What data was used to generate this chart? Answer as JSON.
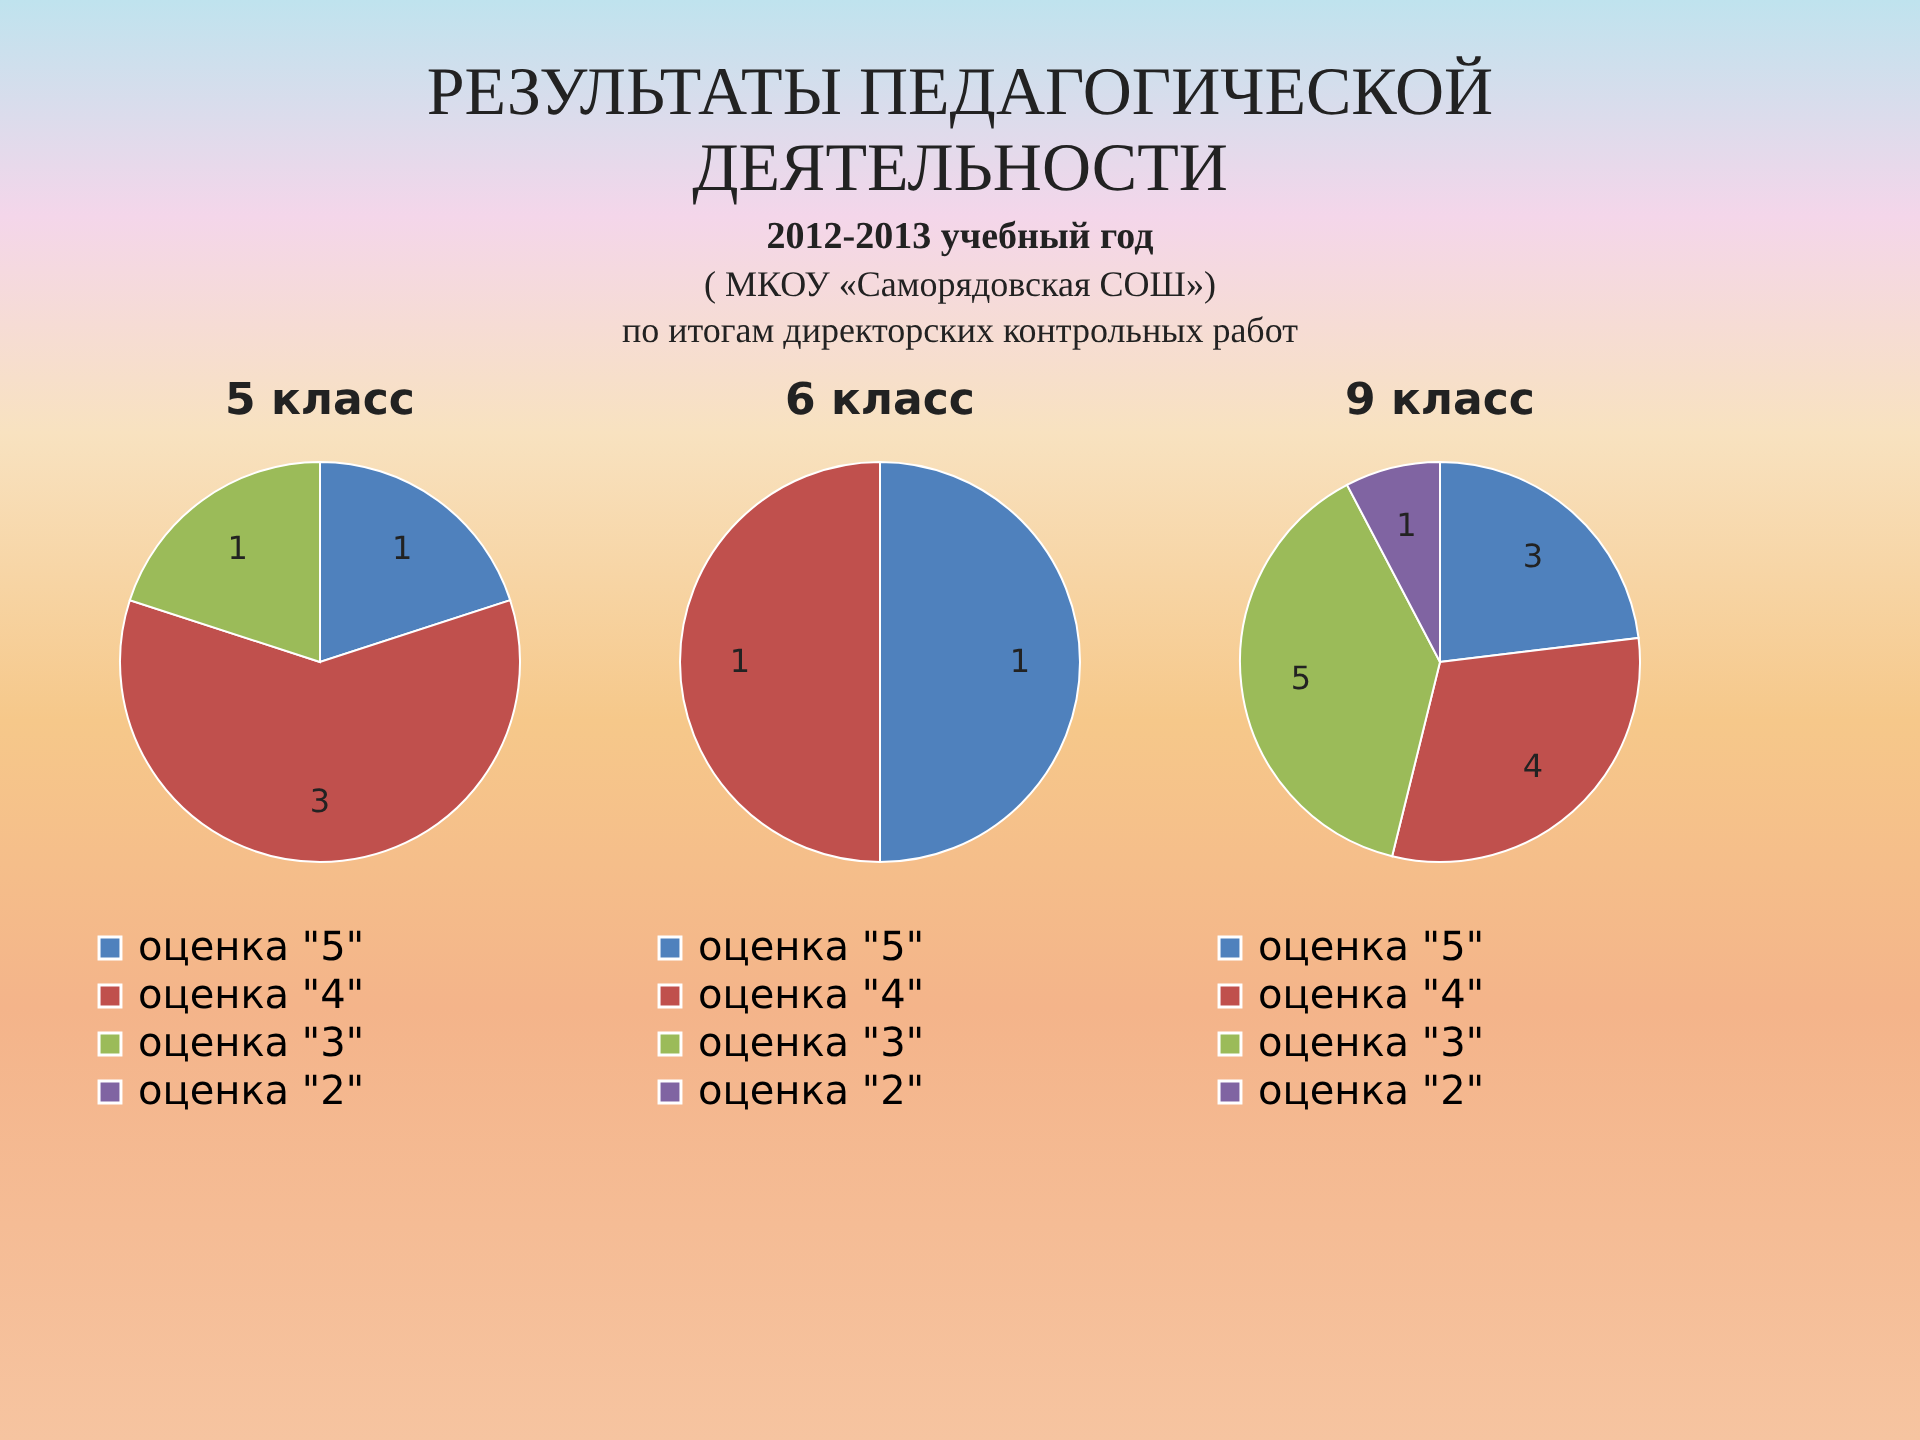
{
  "chart_data": [
    {
      "type": "pie",
      "title": "5 класс",
      "annotations": [
        "РЕЗУЛЬТАТЫ ПЕДАГОГИЧЕСКОЙ ДЕЯТЕЛЬНОСТИ",
        "2012-2013 учебный год",
        "( МКОУ «Саморядовская СОШ»)",
        "по итогам директорских контрольных работ"
      ],
      "categories": [
        "оценка \"5\"",
        "оценка \"4\"",
        "оценка \"3\"",
        "оценка \"2\""
      ],
      "values": [
        1,
        3,
        1,
        0
      ],
      "value_labels": [
        "1",
        "3",
        "1",
        null
      ],
      "colors": [
        "#4f81bd",
        "#c0504d",
        "#9bbb59",
        "#8064a2"
      ],
      "legend": "bottom"
    },
    {
      "type": "pie",
      "title": "6 класс",
      "categories": [
        "оценка \"5\"",
        "оценка \"4\"",
        "оценка \"3\"",
        "оценка \"2\""
      ],
      "values": [
        1,
        1,
        0,
        0
      ],
      "value_labels": [
        "1",
        "1",
        null,
        null
      ],
      "colors": [
        "#4f81bd",
        "#c0504d",
        "#9bbb59",
        "#8064a2"
      ],
      "legend": "bottom"
    },
    {
      "type": "pie",
      "title": "9 класс",
      "categories": [
        "оценка \"5\"",
        "оценка \"4\"",
        "оценка \"3\"",
        "оценка \"2\""
      ],
      "values": [
        3,
        4,
        5,
        1
      ],
      "data_labels": true,
      "colors": [
        "#4f81bd",
        "#c0504d",
        "#9bbb59",
        "#8064a2"
      ],
      "legend": "bottom"
    }
  ]
}
